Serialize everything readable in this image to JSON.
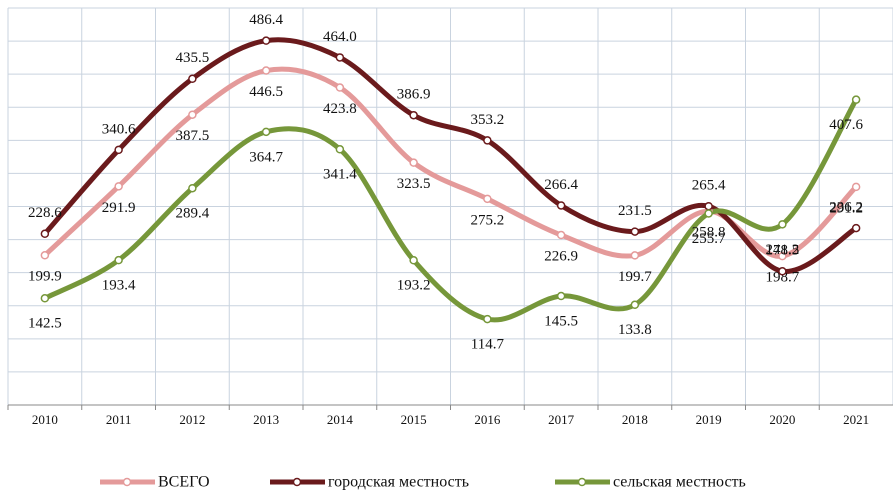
{
  "chart_data": {
    "type": "line",
    "categories": [
      "2010",
      "2011",
      "2012",
      "2013",
      "2014",
      "2015",
      "2016",
      "2017",
      "2018",
      "2019",
      "2020",
      "2021"
    ],
    "series": [
      {
        "name": "ВСЕГО",
        "color": "#e49a9a",
        "values": [
          199.9,
          291.9,
          387.5,
          446.5,
          423.8,
          323.5,
          275.2,
          226.9,
          199.7,
          258.8,
          198.7,
          291.2
        ]
      },
      {
        "name": "городская местность",
        "color": "#6a1a1c",
        "values": [
          228.6,
          340.6,
          435.5,
          486.4,
          464.0,
          386.9,
          353.2,
          266.4,
          231.5,
          265.4,
          178.5,
          236.2
        ],
        "value_labels": [
          "228.6",
          "340.6",
          "435.5",
          "486.4",
          "464.0",
          "386.9",
          "353.2",
          "266.4",
          "231.5",
          "265.4",
          "178.5",
          "236.2"
        ]
      },
      {
        "name": "сельская местность",
        "color": "#76973a",
        "values": [
          142.5,
          193.4,
          289.4,
          364.7,
          341.4,
          193.2,
          114.7,
          145.5,
          133.8,
          255.7,
          241.2,
          407.6
        ]
      }
    ],
    "ylim": [
      0,
      530
    ],
    "grid": true,
    "legend": "bottom"
  }
}
